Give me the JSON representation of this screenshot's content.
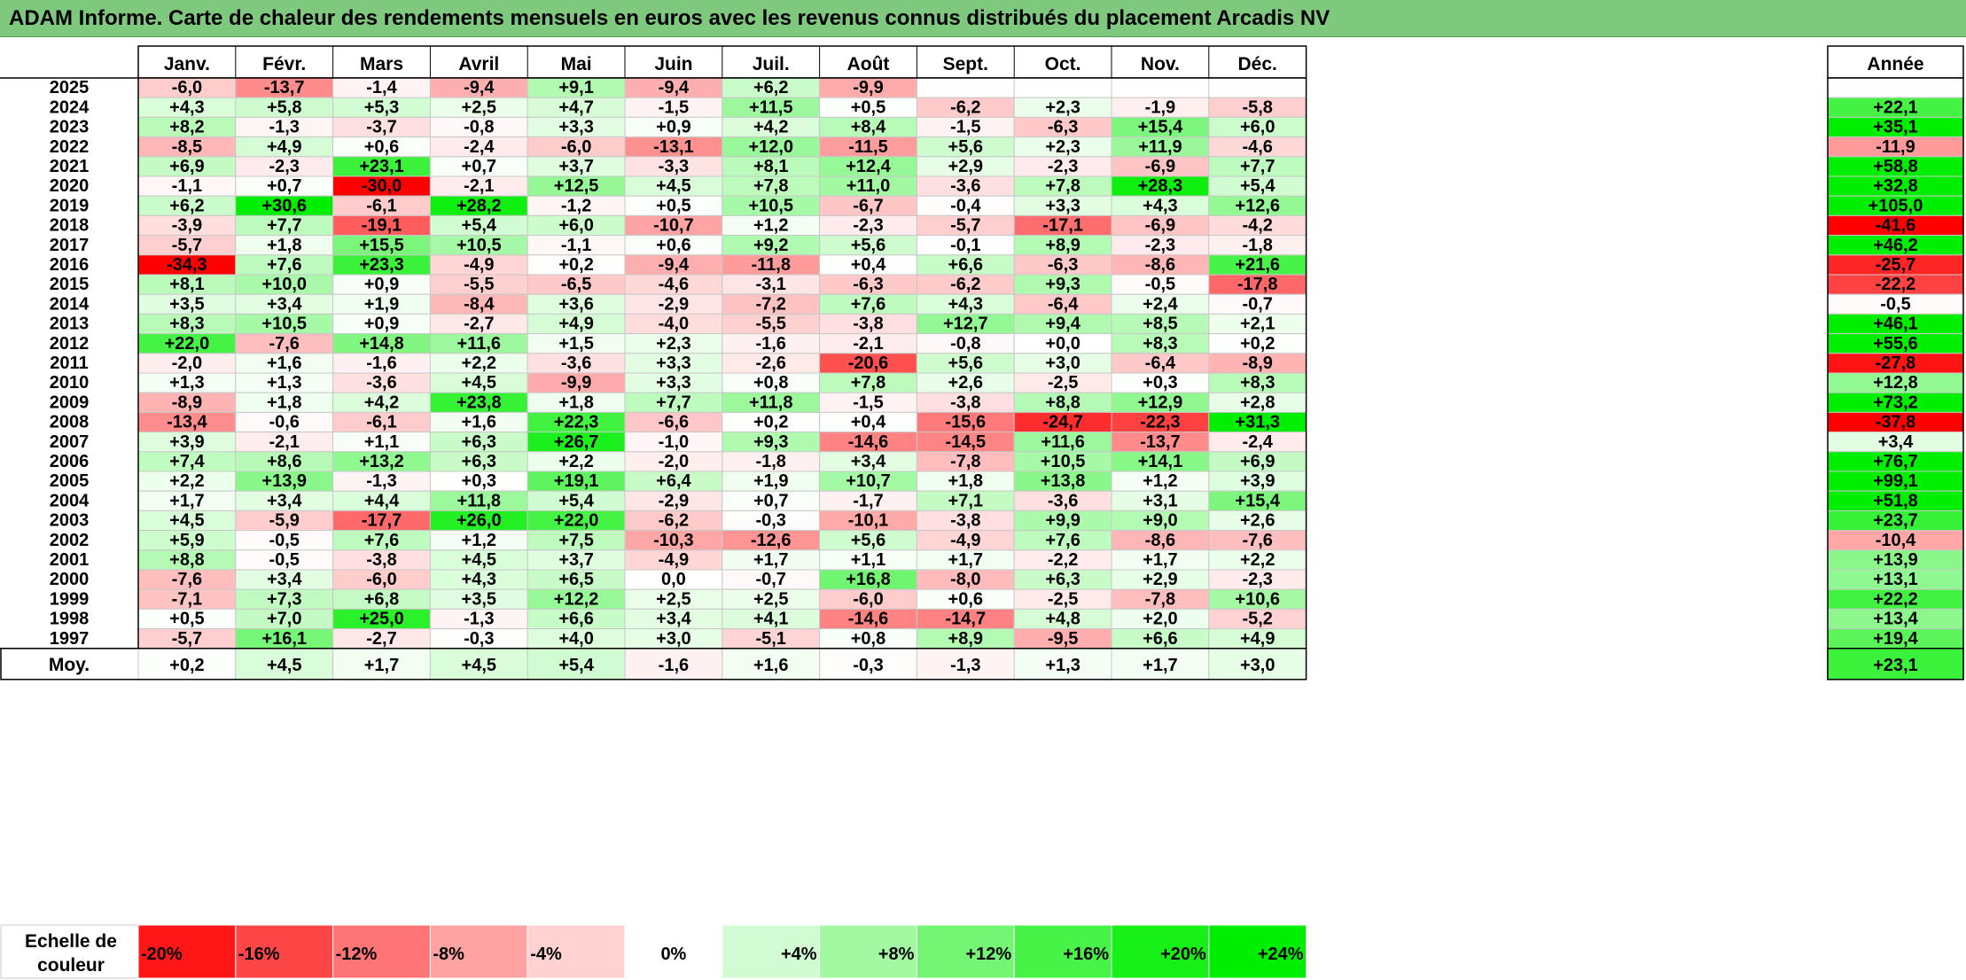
{
  "title": "ADAM Informe. Carte de chaleur des rendements mensuels en euros avec les revenus connus distribués du placement Arcadis NV",
  "chart_data": {
    "type": "heatmap",
    "months": [
      "Janv.",
      "Févr.",
      "Mars",
      "Avril",
      "Mai",
      "Juin",
      "Juil.",
      "Août",
      "Sept.",
      "Oct.",
      "Nov.",
      "Déc."
    ],
    "year_header": "Année",
    "rows": [
      {
        "year": "2025",
        "values": [
          "-6,0",
          "-13,7",
          "-1,4",
          "-9,4",
          "+9,1",
          "-9,4",
          "+6,2",
          "-9,9",
          "",
          "",
          "",
          ""
        ],
        "annual": ""
      },
      {
        "year": "2024",
        "values": [
          "+4,3",
          "+5,8",
          "+5,3",
          "+2,5",
          "+4,7",
          "-1,5",
          "+11,5",
          "+0,5",
          "-6,2",
          "+2,3",
          "-1,9",
          "-5,8"
        ],
        "annual": "+22,1"
      },
      {
        "year": "2023",
        "values": [
          "+8,2",
          "-1,3",
          "-3,7",
          "-0,8",
          "+3,3",
          "+0,9",
          "+4,2",
          "+8,4",
          "-1,5",
          "-6,3",
          "+15,4",
          "+6,0"
        ],
        "annual": "+35,1"
      },
      {
        "year": "2022",
        "values": [
          "-8,5",
          "+4,9",
          "+0,6",
          "-2,4",
          "-6,0",
          "-13,1",
          "+12,0",
          "-11,5",
          "+5,6",
          "+2,3",
          "+11,9",
          "-4,6"
        ],
        "annual": "-11,9"
      },
      {
        "year": "2021",
        "values": [
          "+6,9",
          "-2,3",
          "+23,1",
          "+0,7",
          "+3,7",
          "-3,3",
          "+8,1",
          "+12,4",
          "+2,9",
          "-2,3",
          "-6,9",
          "+7,7"
        ],
        "annual": "+58,8"
      },
      {
        "year": "2020",
        "values": [
          "-1,1",
          "+0,7",
          "-30,0",
          "-2,1",
          "+12,5",
          "+4,5",
          "+7,8",
          "+11,0",
          "-3,6",
          "+7,8",
          "+28,3",
          "+5,4"
        ],
        "annual": "+32,8"
      },
      {
        "year": "2019",
        "values": [
          "+6,2",
          "+30,6",
          "-6,1",
          "+28,2",
          "-1,2",
          "+0,5",
          "+10,5",
          "-6,7",
          "-0,4",
          "+3,3",
          "+4,3",
          "+12,6"
        ],
        "annual": "+105,0"
      },
      {
        "year": "2018",
        "values": [
          "-3,9",
          "+7,7",
          "-19,1",
          "+5,4",
          "+6,0",
          "-10,7",
          "+1,2",
          "-2,3",
          "-5,7",
          "-17,1",
          "-6,9",
          "-4,2"
        ],
        "annual": "-41,6"
      },
      {
        "year": "2017",
        "values": [
          "-5,7",
          "+1,8",
          "+15,5",
          "+10,5",
          "-1,1",
          "+0,6",
          "+9,2",
          "+5,6",
          "-0,1",
          "+8,9",
          "-2,3",
          "-1,8"
        ],
        "annual": "+46,2"
      },
      {
        "year": "2016",
        "values": [
          "-34,3",
          "+7,6",
          "+23,3",
          "-4,9",
          "+0,2",
          "-9,4",
          "-11,8",
          "+0,4",
          "+6,6",
          "-6,3",
          "-8,6",
          "+21,6"
        ],
        "annual": "-25,7"
      },
      {
        "year": "2015",
        "values": [
          "+8,1",
          "+10,0",
          "+0,9",
          "-5,5",
          "-6,5",
          "-4,6",
          "-3,1",
          "-6,3",
          "-6,2",
          "+9,3",
          "-0,5",
          "-17,8"
        ],
        "annual": "-22,2"
      },
      {
        "year": "2014",
        "values": [
          "+3,5",
          "+3,4",
          "+1,9",
          "-8,4",
          "+3,6",
          "-2,9",
          "-7,2",
          "+7,6",
          "+4,3",
          "-6,4",
          "+2,4",
          "-0,7"
        ],
        "annual": "-0,5"
      },
      {
        "year": "2013",
        "values": [
          "+8,3",
          "+10,5",
          "+0,9",
          "-2,7",
          "+4,9",
          "-4,0",
          "-5,5",
          "-3,8",
          "+12,7",
          "+9,4",
          "+8,5",
          "+2,1"
        ],
        "annual": "+46,1"
      },
      {
        "year": "2012",
        "values": [
          "+22,0",
          "-7,6",
          "+14,8",
          "+11,6",
          "+1,5",
          "+2,3",
          "-1,6",
          "-2,1",
          "-0,8",
          "+0,0",
          "+8,3",
          "+0,2"
        ],
        "annual": "+55,6"
      },
      {
        "year": "2011",
        "values": [
          "-2,0",
          "+1,6",
          "-1,6",
          "+2,2",
          "-3,6",
          "+3,3",
          "-2,6",
          "-20,6",
          "+5,6",
          "+3,0",
          "-6,4",
          "-8,9"
        ],
        "annual": "-27,8"
      },
      {
        "year": "2010",
        "values": [
          "+1,3",
          "+1,3",
          "-3,6",
          "+4,5",
          "-9,9",
          "+3,3",
          "+0,8",
          "+7,8",
          "+2,6",
          "-2,5",
          "+0,3",
          "+8,3"
        ],
        "annual": "+12,8"
      },
      {
        "year": "2009",
        "values": [
          "-8,9",
          "+1,8",
          "+4,2",
          "+23,8",
          "+1,8",
          "+7,7",
          "+11,8",
          "-1,5",
          "-3,8",
          "+8,8",
          "+12,9",
          "+2,8"
        ],
        "annual": "+73,2"
      },
      {
        "year": "2008",
        "values": [
          "-13,4",
          "-0,6",
          "-6,1",
          "+1,6",
          "+22,3",
          "-6,6",
          "+0,2",
          "+0,4",
          "-15,6",
          "-24,7",
          "-22,3",
          "+31,3"
        ],
        "annual": "-37,8"
      },
      {
        "year": "2007",
        "values": [
          "+3,9",
          "-2,1",
          "+1,1",
          "+6,3",
          "+26,7",
          "-1,0",
          "+9,3",
          "-14,6",
          "-14,5",
          "+11,6",
          "-13,7",
          "-2,4"
        ],
        "annual": "+3,4"
      },
      {
        "year": "2006",
        "values": [
          "+7,4",
          "+8,6",
          "+13,2",
          "+6,3",
          "+2,2",
          "-2,0",
          "-1,8",
          "+3,4",
          "-7,8",
          "+10,5",
          "+14,1",
          "+6,9"
        ],
        "annual": "+76,7"
      },
      {
        "year": "2005",
        "values": [
          "+2,2",
          "+13,9",
          "-1,3",
          "+0,3",
          "+19,1",
          "+6,4",
          "+1,9",
          "+10,7",
          "+1,8",
          "+13,8",
          "+1,2",
          "+3,9"
        ],
        "annual": "+99,1"
      },
      {
        "year": "2004",
        "values": [
          "+1,7",
          "+3,4",
          "+4,4",
          "+11,8",
          "+5,4",
          "-2,9",
          "+0,7",
          "-1,7",
          "+7,1",
          "-3,6",
          "+3,1",
          "+15,4"
        ],
        "annual": "+51,8"
      },
      {
        "year": "2003",
        "values": [
          "+4,5",
          "-5,9",
          "-17,7",
          "+26,0",
          "+22,0",
          "-6,2",
          "-0,3",
          "-10,1",
          "-3,8",
          "+9,9",
          "+9,0",
          "+2,6"
        ],
        "annual": "+23,7"
      },
      {
        "year": "2002",
        "values": [
          "+5,9",
          "-0,5",
          "+7,6",
          "+1,2",
          "+7,5",
          "-10,3",
          "-12,6",
          "+5,6",
          "-4,9",
          "+7,6",
          "-8,6",
          "-7,6"
        ],
        "annual": "-10,4"
      },
      {
        "year": "2001",
        "values": [
          "+8,8",
          "-0,5",
          "-3,8",
          "+4,5",
          "+3,7",
          "-4,9",
          "+1,7",
          "+1,1",
          "+1,7",
          "-2,2",
          "+1,7",
          "+2,2"
        ],
        "annual": "+13,9"
      },
      {
        "year": "2000",
        "values": [
          "-7,6",
          "+3,4",
          "-6,0",
          "+4,3",
          "+6,5",
          "0,0",
          "-0,7",
          "+16,8",
          "-8,0",
          "+6,3",
          "+2,9",
          "-2,3"
        ],
        "annual": "+13,1"
      },
      {
        "year": "1999",
        "values": [
          "-7,1",
          "+7,3",
          "+6,8",
          "+3,5",
          "+12,2",
          "+2,5",
          "+2,5",
          "-6,0",
          "+0,6",
          "-2,5",
          "-7,8",
          "+10,6"
        ],
        "annual": "+22,2"
      },
      {
        "year": "1998",
        "values": [
          "+0,5",
          "+7,0",
          "+25,0",
          "-1,3",
          "+6,6",
          "+3,4",
          "+4,1",
          "-14,6",
          "-14,7",
          "+4,8",
          "+2,0",
          "-5,2"
        ],
        "annual": "+13,4"
      },
      {
        "year": "1997",
        "values": [
          "-5,7",
          "+16,1",
          "-2,7",
          "-0,3",
          "+4,0",
          "+3,0",
          "-5,1",
          "+0,8",
          "+8,9",
          "-9,5",
          "+6,6",
          "+4,9"
        ],
        "annual": "+19,4"
      }
    ],
    "average": {
      "label": "Moy.",
      "values": [
        "+0,2",
        "+4,5",
        "+1,7",
        "+4,5",
        "+5,4",
        "-1,6",
        "+1,6",
        "-0,3",
        "-1,3",
        "+1,3",
        "+1,7",
        "+3,0"
      ],
      "annual": "+23,1"
    },
    "scale": {
      "label_line1": "Echelle de",
      "label_line2": "couleur",
      "items": [
        "-20%",
        "-16%",
        "-12%",
        "-8%",
        "-4%",
        "0%",
        "+4%",
        "+8%",
        "+12%",
        "+16%",
        "+20%",
        "+24%"
      ],
      "values": [
        -20,
        -16,
        -12,
        -8,
        -4,
        0,
        4,
        8,
        12,
        16,
        20,
        24
      ]
    },
    "colors": {
      "negative": "#ff0000",
      "neutral": "#ffffff",
      "positive": "#00ee00",
      "title_bg": "#7fc97f"
    }
  }
}
